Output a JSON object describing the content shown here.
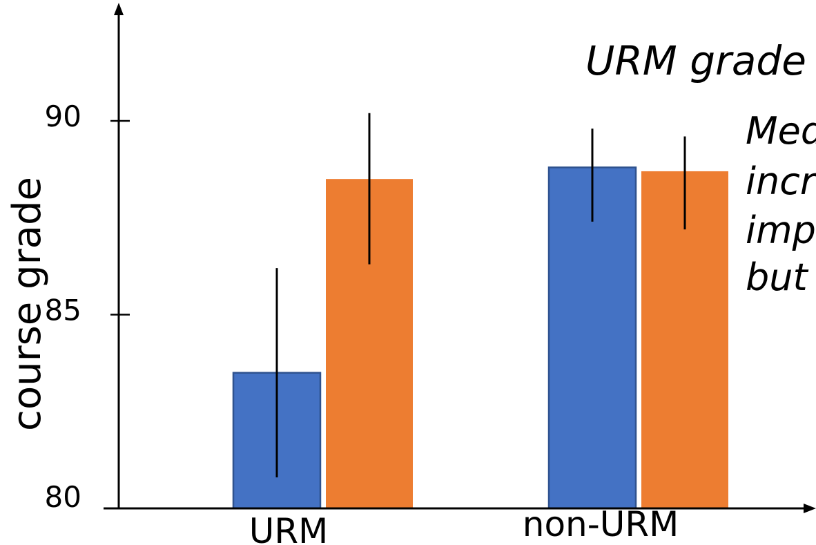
{
  "chart_data": {
    "type": "bar",
    "categories": [
      "URM",
      "non-URM"
    ],
    "series": [
      {
        "color": "#4472C4",
        "values": [
          83.5,
          88.8
        ],
        "error_low": [
          80.8,
          87.4
        ],
        "error_high": [
          86.2,
          89.8
        ]
      },
      {
        "color": "#ED7D31",
        "values": [
          88.5,
          88.7
        ],
        "error_low": [
          86.3,
          87.2
        ],
        "error_high": [
          90.2,
          89.6
        ]
      }
    ],
    "ylabel": "course grade",
    "xlabel": "",
    "ylim": [
      80,
      90
    ],
    "yticks": [
      "80",
      "85",
      "90"
    ],
    "grid": false,
    "annotations": {
      "title": "URM grade",
      "lines": [
        "Med",
        "incr",
        "imp",
        "but"
      ]
    }
  }
}
